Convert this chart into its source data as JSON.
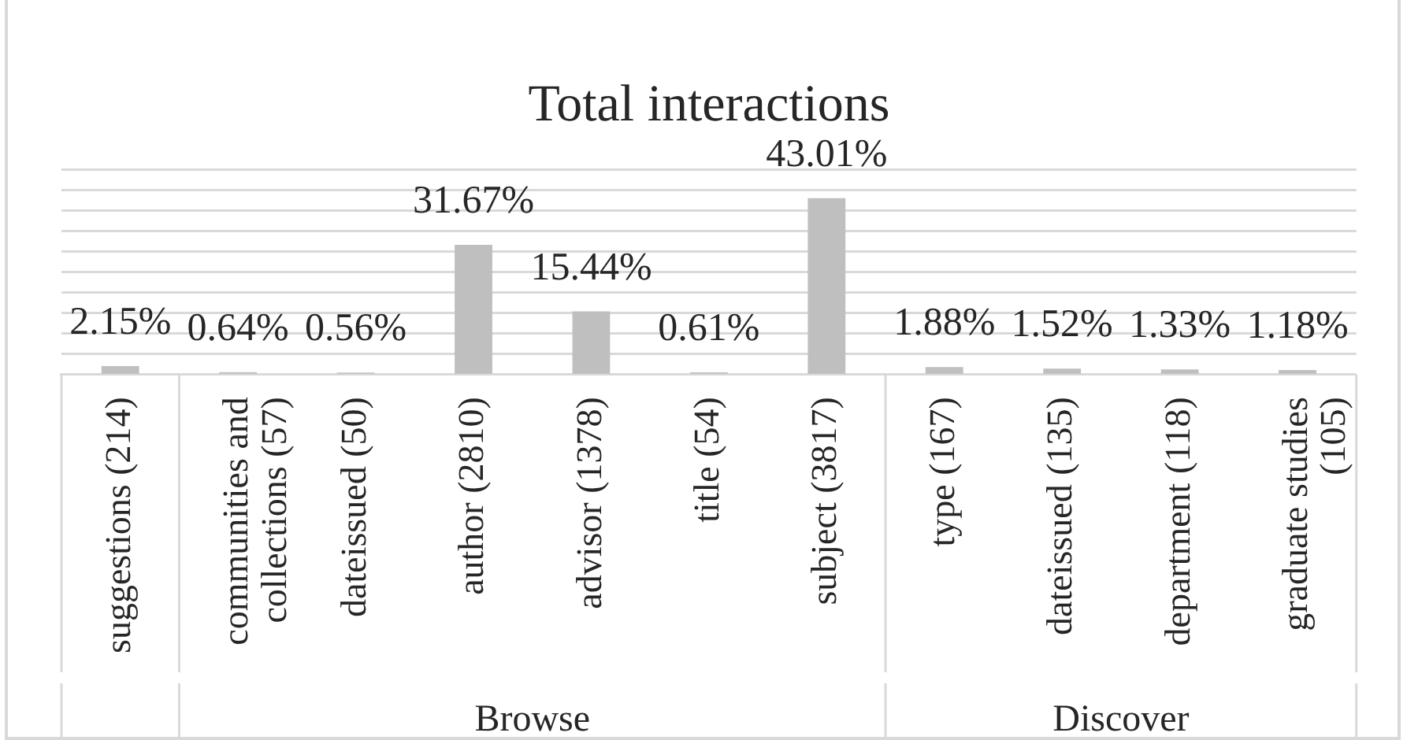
{
  "chart_data": {
    "type": "bar",
    "title": "Total interactions",
    "categories": [
      "suggestions (214)",
      "communities and collections (57)",
      "dateissued (50)",
      "author (2810)",
      "advisor (1378)",
      "title (54)",
      "subject (3817)",
      "type (167)",
      "dateissued (135)",
      "department (118)",
      "graduate studies (105)"
    ],
    "values": [
      2.15,
      0.64,
      0.56,
      31.67,
      15.44,
      0.61,
      43.01,
      1.88,
      1.52,
      1.33,
      1.18
    ],
    "value_labels": [
      "2.15%",
      "0.64%",
      "0.56%",
      "31.67%",
      "15.44%",
      "0.61%",
      "43.01%",
      "1.88%",
      "1.52%",
      "1.33%",
      "1.18%"
    ],
    "color": "#bfbfbf",
    "ylim": [
      0,
      50
    ],
    "yticks": [
      {
        "value": 0,
        "label": null
      },
      {
        "value": 5,
        "label": null
      },
      {
        "value": 10,
        "label": null
      },
      {
        "value": 15,
        "label": null
      },
      {
        "value": 20,
        "label": null
      },
      {
        "value": 25,
        "label": null
      },
      {
        "value": 30,
        "label": null
      },
      {
        "value": 35,
        "label": null
      },
      {
        "value": 40,
        "label": null
      },
      {
        "value": 45,
        "label": null
      },
      {
        "value": 50,
        "label": null
      }
    ],
    "grid": "y",
    "tick_labels": "x",
    "annotations": [
      "Browse",
      "Discover"
    ]
  }
}
